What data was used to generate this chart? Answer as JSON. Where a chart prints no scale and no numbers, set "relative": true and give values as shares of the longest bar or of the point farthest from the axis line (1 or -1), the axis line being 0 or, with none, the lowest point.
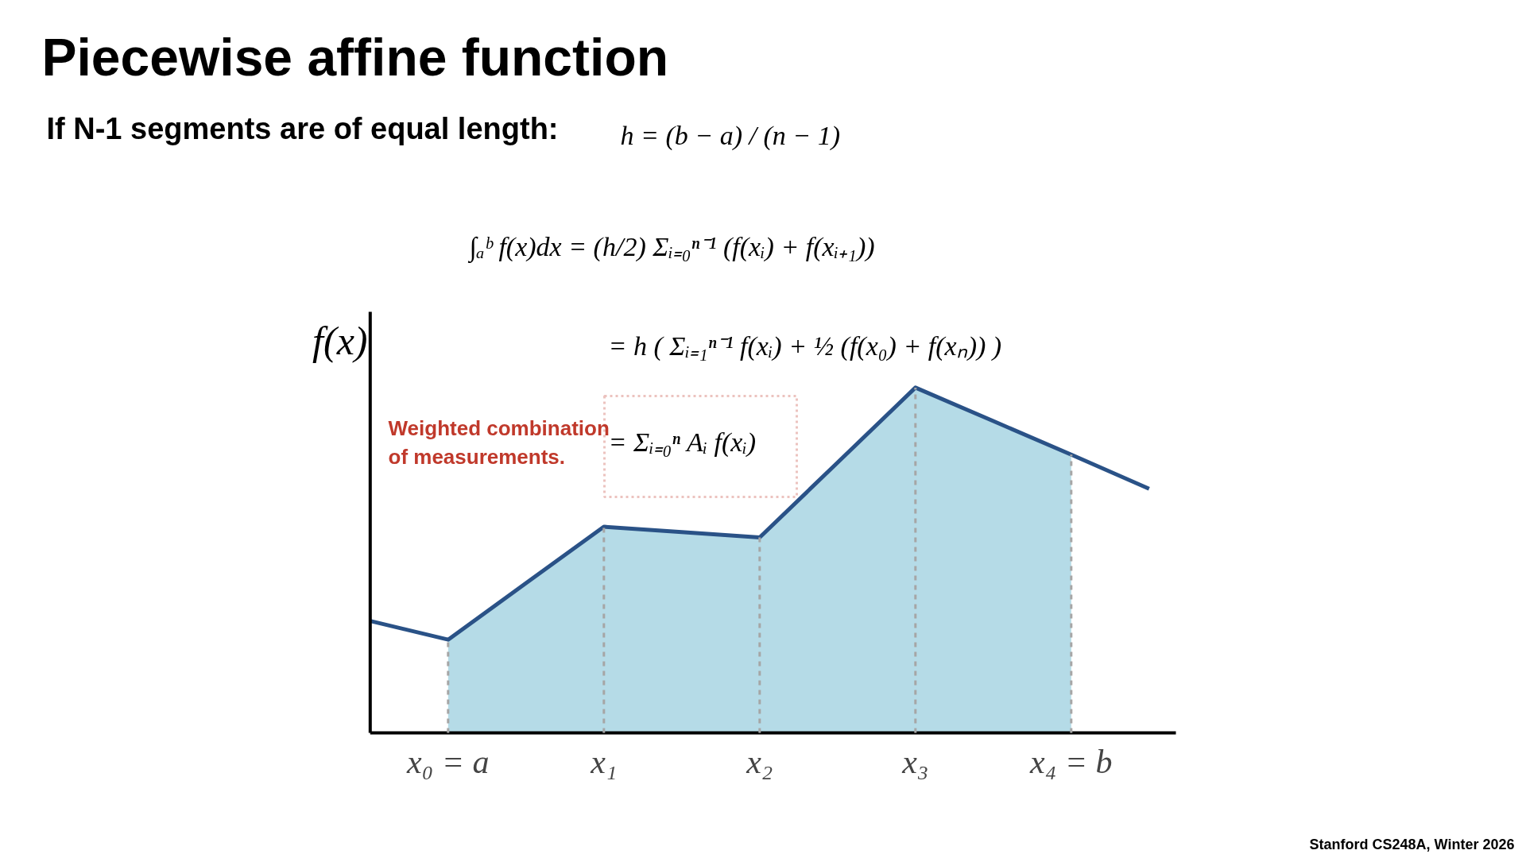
{
  "chart_data": {
    "type": "area",
    "title": "Piecewise affine function",
    "subtitle": "If N-1 segments are of equal length:",
    "ylabel": "f(x)",
    "relative": true,
    "grid": false,
    "categories": [
      null,
      "x₀ = a",
      null,
      "x₁",
      null,
      "x₂",
      null,
      "x₃",
      null,
      "x₄ = b",
      null
    ],
    "series": [
      {
        "color": "#b5dbe7",
        "values": [
          null,
          0.27,
          0.4335,
          0.597,
          0.5815,
          0.566,
          0.783,
          1,
          0.903,
          0.806,
          null
        ]
      },
      {
        "type": "line",
        "color": "#2a5287",
        "values": [
          0.324,
          0.27,
          0.4335,
          0.597,
          0.5815,
          0.566,
          0.783,
          1,
          0.903,
          0.806,
          0.707
        ]
      }
    ],
    "ref_lines": [
      {
        "axis": "x",
        "value": "x₀ = a",
        "color": "#a6a6a6",
        "line_style": "dashed"
      },
      {
        "axis": "x",
        "value": "x₁",
        "color": "#a6a6a6",
        "line_style": "dashed"
      },
      {
        "axis": "x",
        "value": "x₂",
        "color": "#a6a6a6",
        "line_style": "dashed"
      },
      {
        "axis": "x",
        "value": "x₃",
        "color": "#a6a6a6",
        "line_style": "dashed"
      },
      {
        "axis": "x",
        "value": "x₄ = b",
        "color": "#a6a6a6",
        "line_style": "dashed"
      }
    ],
    "annotations": [
      "h = (b − a) / (n − 1)",
      "∫ₐᵇ f(x)dx = (h/2) Σᵢ₌₀ⁿ⁻¹ (f(xᵢ) + f(xᵢ₊₁))",
      "= h ( Σᵢ₌₁ⁿ⁻¹ f(xᵢ) + ½ (f(x₀) + f(xₙ)) )",
      "= Σᵢ₌₀ⁿ Aᵢ f(xᵢ)",
      "Weighted combination of measurements.",
      "Stanford CS248A, Winter 2026"
    ]
  }
}
